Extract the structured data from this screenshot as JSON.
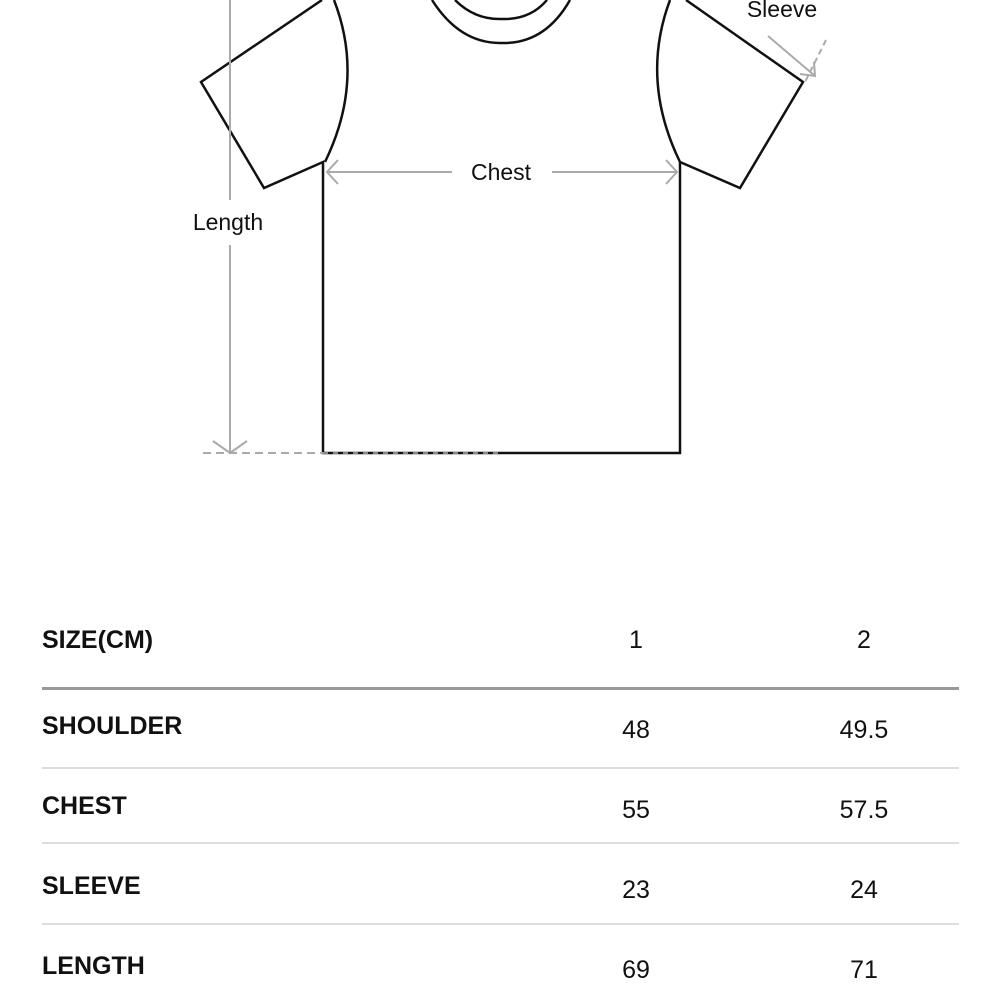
{
  "diagram": {
    "labels": {
      "sleeve": "Sleeve",
      "chest": "Chest",
      "length": "Length"
    }
  },
  "table": {
    "header": {
      "label": "SIZE(CM)",
      "sizes": [
        "1",
        "2"
      ]
    },
    "rows": [
      {
        "label": "SHOULDER",
        "values": [
          "48",
          "49.5"
        ]
      },
      {
        "label": "CHEST",
        "values": [
          "55",
          "57.5"
        ]
      },
      {
        "label": "SLEEVE",
        "values": [
          "23",
          "24"
        ]
      },
      {
        "label": "LENGTH",
        "values": [
          "69",
          "71"
        ]
      }
    ]
  }
}
